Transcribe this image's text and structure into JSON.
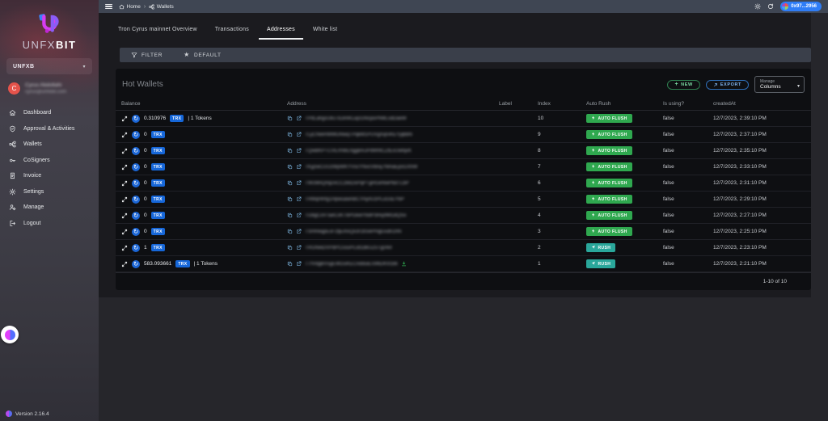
{
  "sidebar": {
    "logo_primary": "UNFX",
    "logo_secondary": "BIT",
    "org_select": "UNFXB",
    "user": {
      "initial": "C",
      "name": "Cyrus Abdollahi",
      "email": "cyrus@unfxbit.com"
    },
    "items": [
      {
        "label": "Dashboard",
        "icon": "home"
      },
      {
        "label": "Approval & Activities",
        "icon": "shield"
      },
      {
        "label": "Wallets",
        "icon": "wallets"
      },
      {
        "label": "CoSigners",
        "icon": "key"
      },
      {
        "label": "Invoice",
        "icon": "invoice"
      },
      {
        "label": "Settings",
        "icon": "gear"
      },
      {
        "label": "Manage",
        "icon": "manage"
      },
      {
        "label": "Logout",
        "icon": "logout"
      }
    ],
    "version": "Version 2.16.4"
  },
  "topbar": {
    "breadcrumb_home": "Home",
    "breadcrumb_current": "Wallets",
    "wallet_pill": "0x97...2956"
  },
  "tabs": [
    {
      "label": "Tron Cyrus mainnet Overview",
      "active": false
    },
    {
      "label": "Transactions",
      "active": false
    },
    {
      "label": "Addresses",
      "active": true
    },
    {
      "label": "White list",
      "active": false
    }
  ],
  "filter_bar": {
    "filter_label": "FILTER",
    "default_label": "DEFAULT"
  },
  "wallets_card": {
    "title": "Hot Wallets",
    "new_button": "NEW",
    "export_button": "EXPORT",
    "manage_label": "Manage",
    "columns_label": "Columns",
    "pagination": "1-10 of 10",
    "columns": [
      "Balance",
      "Address",
      "Label",
      "Index",
      "Auto Rush",
      "Is using?",
      "createdAt"
    ],
    "rows": [
      {
        "balance": "0.310976",
        "currency": "TRX",
        "tokens": "| 1 Tokens",
        "address": "TPdLahgsUks7dJimKLiqcGNcpsPhMLsdDaeW",
        "label": "",
        "index": "10",
        "action": "AUTO FLUSH",
        "action_style": "green",
        "is_using": "false",
        "created_at": "12/7/2023, 2:39:10 PM",
        "hot": false
      },
      {
        "balance": "0",
        "currency": "TRX",
        "tokens": "",
        "address": "TLyCNeiHWMGNwqTPqkM1PUVgXqrvKEYjqbbN",
        "label": "",
        "index": "9",
        "action": "AUTO FLUSH",
        "action_style": "green",
        "is_using": "false",
        "created_at": "12/7/2023, 2:37:10 PM",
        "hot": false
      },
      {
        "balance": "0",
        "currency": "TRX",
        "tokens": "",
        "address": "TQwBKPTCVEXNbLhggkmJPdWhtCZtEsUwfqvK",
        "label": "",
        "index": "8",
        "action": "AUTO FLUSH",
        "action_style": "green",
        "is_using": "false",
        "created_at": "12/7/2023, 2:35:10 PM",
        "hot": false
      },
      {
        "balance": "0",
        "currency": "TRX",
        "tokens": "",
        "address": "TKgzwCUUzWpWKYVscYNvcVbnq7NmaEpsGXhW",
        "label": "",
        "index": "7",
        "action": "AUTO FLUSH",
        "action_style": "green",
        "is_using": "false",
        "created_at": "12/7/2023, 2:33:10 PM",
        "hot": false
      },
      {
        "balance": "0",
        "currency": "TRX",
        "tokens": "",
        "address": "TWcMnQmjDvCC2kkDxPqPTgHGeNwPbdTLbP",
        "label": "",
        "index": "6",
        "action": "AUTO FLUSH",
        "action_style": "green",
        "is_using": "false",
        "created_at": "12/7/2023, 2:31:10 PM",
        "hot": false
      },
      {
        "balance": "0",
        "currency": "TRX",
        "tokens": "",
        "address": "THMqHRfg1HpwuawnBCYAynUzPLuGsEYbP",
        "label": "",
        "index": "5",
        "action": "AUTO FLUSH",
        "action_style": "green",
        "is_using": "false",
        "created_at": "12/7/2023, 2:29:10 PM",
        "hot": false
      },
      {
        "balance": "0",
        "currency": "TRX",
        "tokens": "",
        "address": "TGbgCoVTaeCsKTbPGkieYbdP3miy9M1dQSo",
        "label": "",
        "index": "4",
        "action": "AUTO FLUSH",
        "action_style": "green",
        "is_using": "false",
        "created_at": "12/7/2023, 2:27:10 PM",
        "hot": false
      },
      {
        "balance": "0",
        "currency": "TRX",
        "tokens": "",
        "address": "TSHReqpEsF2tjEmsQx3r16SePHgGsdn1hN",
        "label": "",
        "index": "3",
        "action": "AUTO FLUSH",
        "action_style": "green",
        "is_using": "false",
        "created_at": "12/7/2023, 2:25:10 PM",
        "hot": false
      },
      {
        "balance": "1",
        "currency": "TRX",
        "tokens": "",
        "address": "TRGNeiDVPdPCcouPcJd1dkUZ5Tgz4vt",
        "label": "",
        "index": "2",
        "action": "RUSH",
        "action_style": "teal",
        "is_using": "false",
        "created_at": "12/7/2023, 2:23:10 PM",
        "hot": false
      },
      {
        "balance": "583.093661",
        "currency": "TRX",
        "tokens": "| 1 Tokens",
        "address": "TTfVdgBVsgEWDuKECndduiES96DK91bb",
        "label": "",
        "index": "1",
        "action": "RUSH",
        "action_style": "teal",
        "is_using": "false",
        "created_at": "12/7/2023, 2:21:10 PM",
        "hot": true
      }
    ]
  },
  "colors": {
    "accent_blue": "#2f7df6",
    "trx_badge": "#1667d9",
    "green_action": "#2fa84f",
    "teal_action": "#2aa79b",
    "avatar_red": "#e5534b"
  }
}
